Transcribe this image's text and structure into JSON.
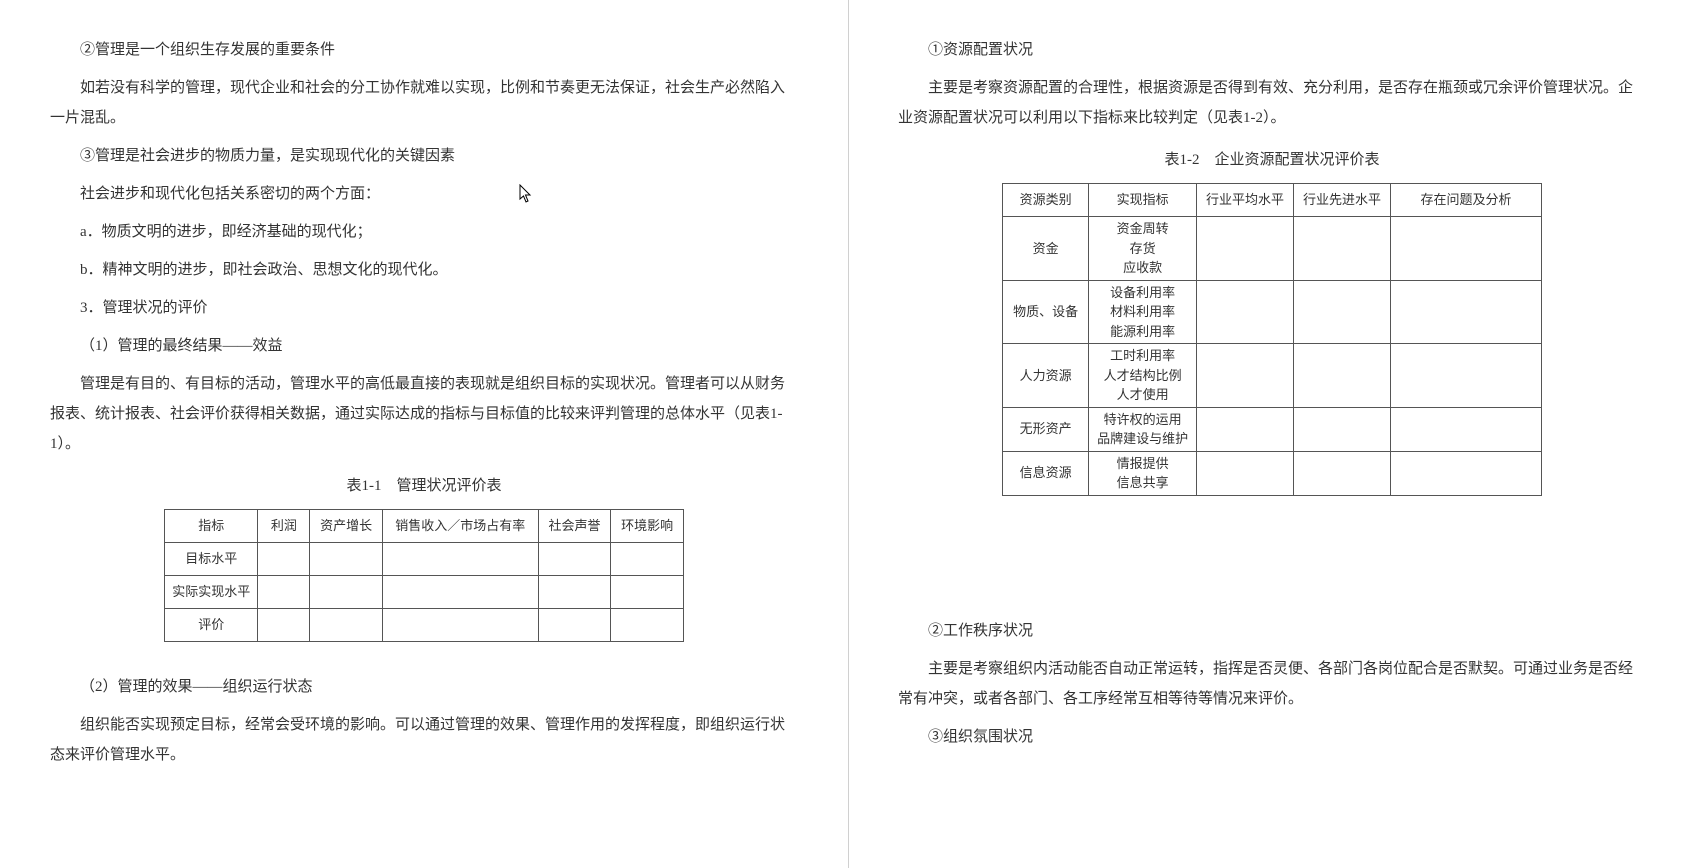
{
  "left": {
    "p1": "②管理是一个组织生存发展的重要条件",
    "p2": "如若没有科学的管理，现代企业和社会的分工协作就难以实现，比例和节奏更无法保证，社会生产必然陷入一片混乱。",
    "p3": "③管理是社会进步的物质力量，是实现现代化的关键因素",
    "p4": "社会进步和现代化包括关系密切的两个方面：",
    "p5": "a．物质文明的进步，即经济基础的现代化；",
    "p6": "b．精神文明的进步，即社会政治、思想文化的现代化。",
    "p7": "3．管理状况的评价",
    "p8": "（1）管理的最终结果——效益",
    "p9": "管理是有目的、有目标的活动，管理水平的高低最直接的表现就是组织目标的实现状况。管理者可以从财务报表、统计报表、社会评价获得相关数据，通过实际达成的指标与目标值的比较来评判管理的总体水平（见表1-1）。",
    "caption1": "表1-1　管理状况评价表",
    "table1": {
      "headers": [
        "指标",
        "利润",
        "资产增长",
        "销售收入／市场占有率",
        "社会声誉",
        "环境影响"
      ],
      "rows": [
        "目标水平",
        "实际实现水平",
        "评价"
      ],
      "col_widths": [
        "90px",
        "50px",
        "70px",
        "150px",
        "70px",
        "70px"
      ]
    },
    "p10": "（2）管理的效果——组织运行状态",
    "p11": "组织能否实现预定目标，经常会受环境的影响。可以通过管理的效果、管理作用的发挥程度，即组织运行状态来评价管理水平。"
  },
  "right": {
    "p1": "①资源配置状况",
    "p2": "主要是考察资源配置的合理性，根据资源是否得到有效、充分利用，是否存在瓶颈或冗余评价管理状况。企业资源配置状况可以利用以下指标来比较判定（见表1-2）。",
    "caption2": "表1-2　企业资源配置状况评价表",
    "table2": {
      "headers": [
        "资源类别",
        "实现指标",
        "行业平均水平",
        "行业先进水平",
        "存在问题及分析"
      ],
      "col_widths": [
        "80px",
        "100px",
        "90px",
        "90px",
        "140px"
      ],
      "rows": [
        {
          "cat": "资金",
          "ind": "资金周转\n存货\n应收款"
        },
        {
          "cat": "物质、设备",
          "ind": "设备利用率\n材料利用率\n能源利用率"
        },
        {
          "cat": "人力资源",
          "ind": "工时利用率\n人才结构比例\n人才使用"
        },
        {
          "cat": "无形资产",
          "ind": "特许权的运用\n品牌建设与维护"
        },
        {
          "cat": "信息资源",
          "ind": "情报提供\n信息共享"
        }
      ]
    },
    "p3": "②工作秩序状况",
    "p4": "主要是考察组织内活动能否自动正常运转，指挥是否灵便、各部门各岗位配合是否默契。可通过业务是否经常有冲突，或者各部门、各工序经常互相等待等情况来评价。",
    "p5": "③组织氛围状况"
  }
}
